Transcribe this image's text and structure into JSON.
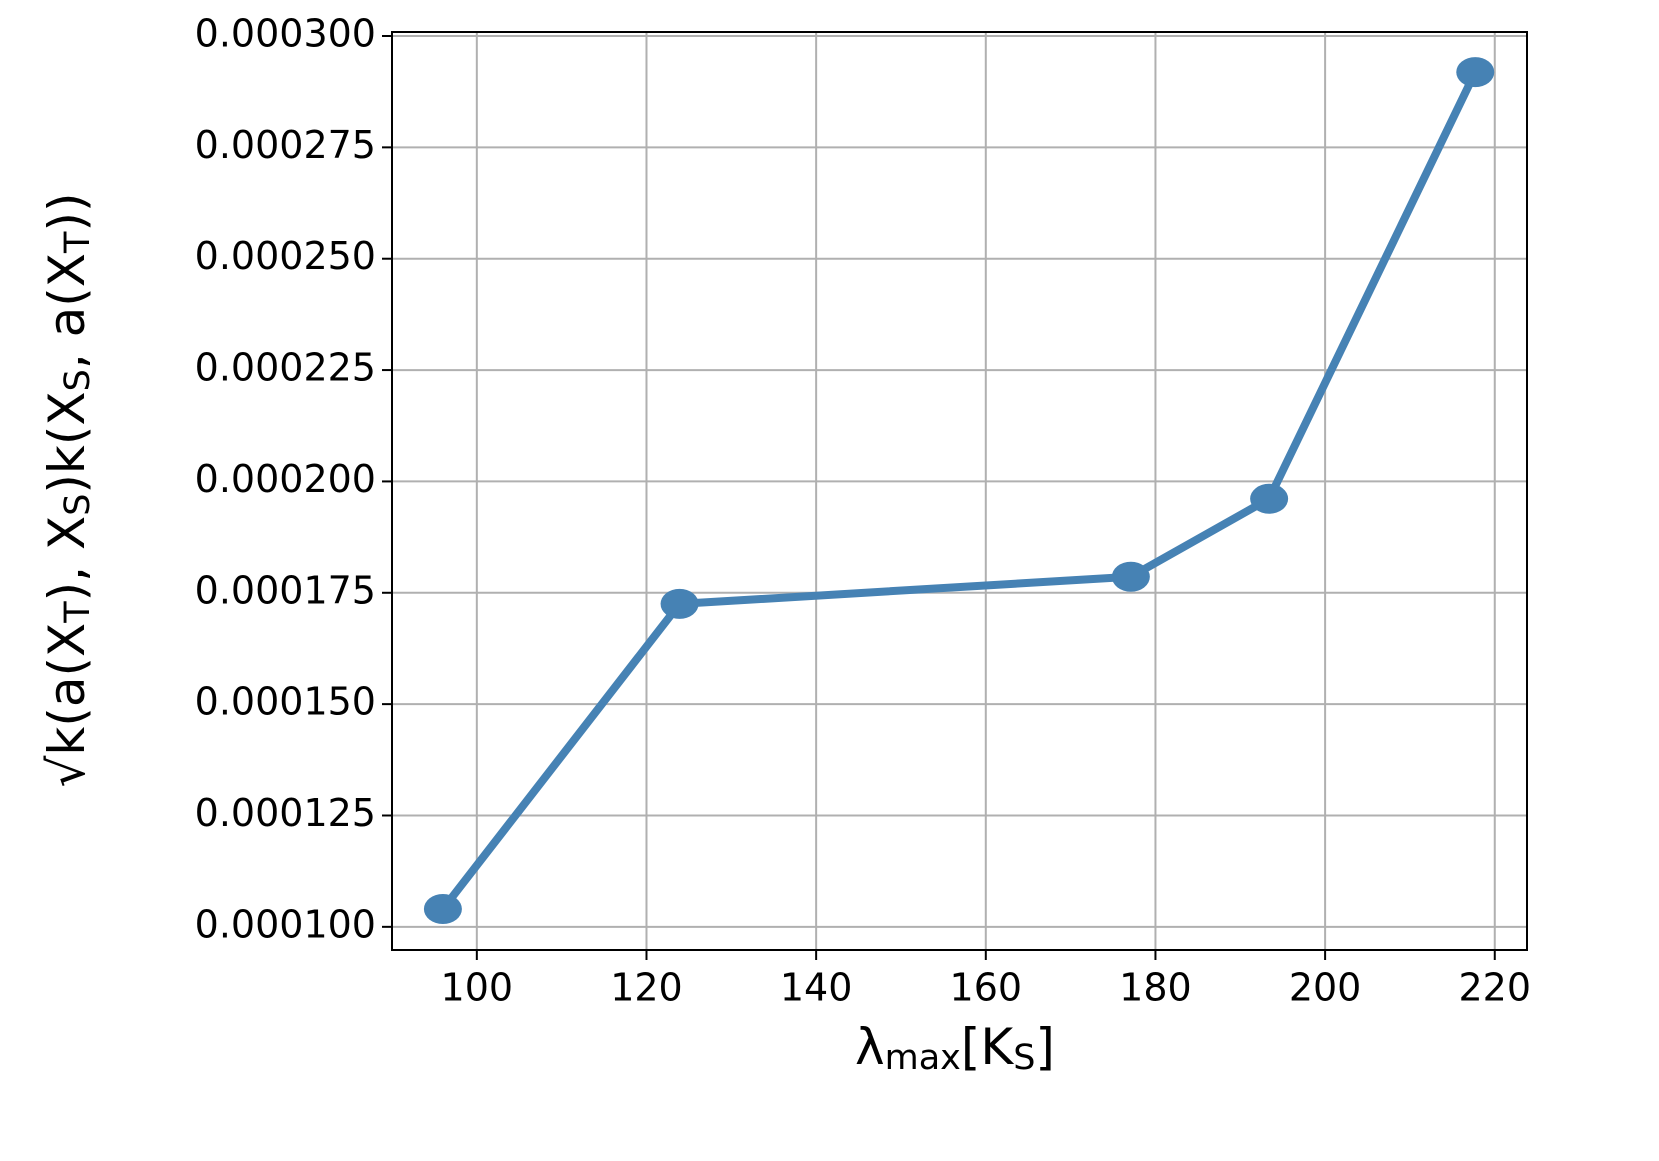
{
  "chart_data": {
    "type": "line",
    "x": [
      96.0,
      123.9,
      177.1,
      193.4,
      217.7
    ],
    "series": [
      {
        "color": "#4682b4",
        "values": [
          0.000104,
          0.0001725,
          0.0001786,
          0.0001961,
          0.0002919
        ]
      }
    ],
    "xlim": [
      90,
      223.8
    ],
    "xticks": [
      100,
      120,
      140,
      160,
      180,
      200,
      220
    ],
    "ylim": [
      9.48e-05,
      0.0003009
    ],
    "yticks": [
      {
        "value": 0.0001,
        "label": "0.000100"
      },
      {
        "value": 0.000125,
        "label": "0.000125"
      },
      {
        "value": 0.00015,
        "label": "0.000150"
      },
      {
        "value": 0.000175,
        "label": "0.000175"
      },
      {
        "value": 0.0002,
        "label": "0.000200"
      },
      {
        "value": 0.000225,
        "label": "0.000225"
      },
      {
        "value": 0.00025,
        "label": "0.000250"
      },
      {
        "value": 0.000275,
        "label": "0.000275"
      },
      {
        "value": 0.0003,
        "label": "0.000300"
      }
    ],
    "xlabel": "λ_{max}[K_S]",
    "ylabel": "√k(a(X_T), X_S)k(X_S, a(X_T))",
    "grid": true
  }
}
